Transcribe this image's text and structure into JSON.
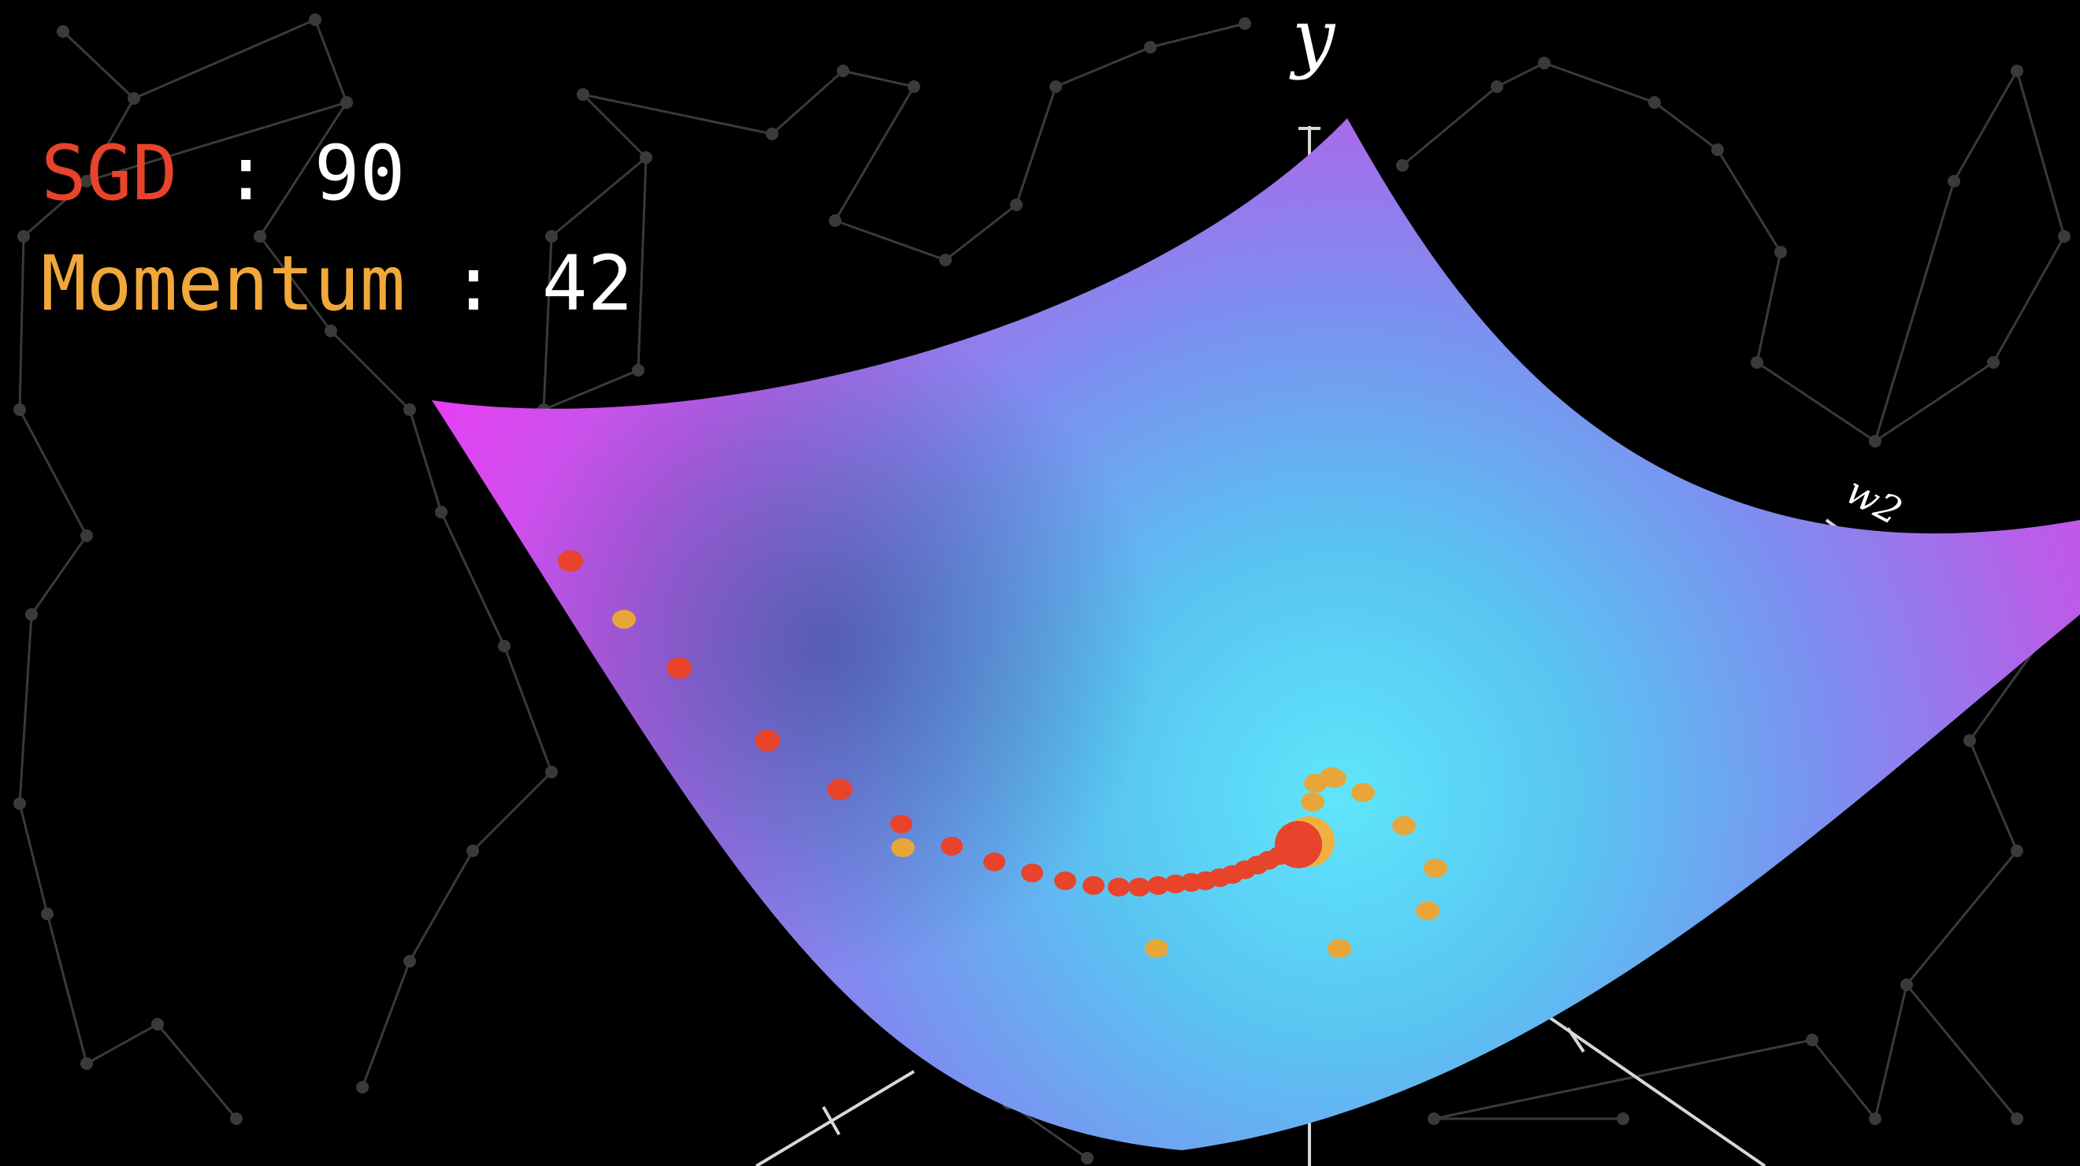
{
  "counters": {
    "sgd": {
      "label": "SGD",
      "separator": " : ",
      "value": "90",
      "color": "#e8432b"
    },
    "momentum": {
      "label": "Momentum",
      "separator": " : ",
      "value": "42",
      "color": "#f0a83a"
    }
  },
  "axes": {
    "y_label": "y",
    "w2_label": "w2"
  },
  "colors": {
    "background": "#000000",
    "constellation": "#3a3a3a",
    "surface_edge": "#e040f0",
    "surface_center": "#5fe6fb",
    "sgd_points": "#e8432b",
    "momentum_points": "#e8a63a"
  }
}
